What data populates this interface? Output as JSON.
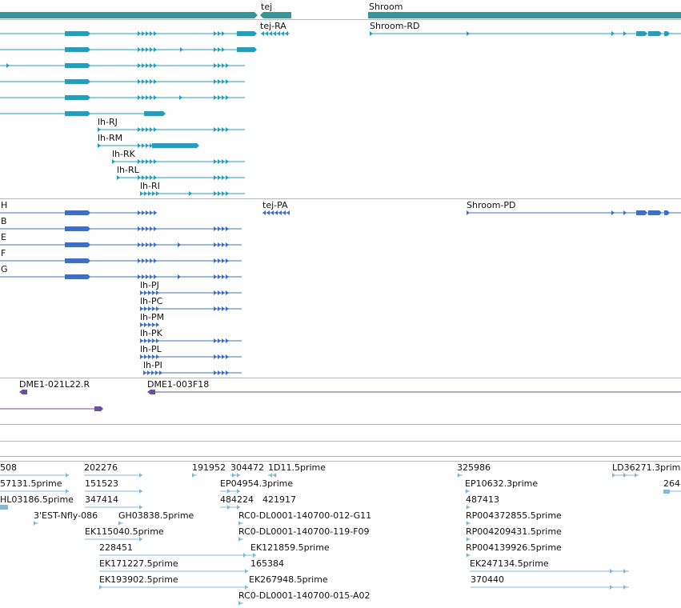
{
  "colors": {
    "gene": "#3a9597",
    "transcript": "#1fa0bf",
    "protein": "#3a6fcf",
    "clone": "#6e4e9e",
    "est": "#84b8db",
    "line": "#7a7a7a"
  },
  "genes": [
    {
      "label": "tej"
    },
    {
      "label": "Shroom"
    }
  ],
  "transcripts": [
    {
      "label": "tej-RA"
    },
    {
      "label": "Shroom-RD"
    },
    {
      "label": "lh-RJ"
    },
    {
      "label": "lh-RM"
    },
    {
      "label": "lh-RK"
    },
    {
      "label": "lh-RL"
    },
    {
      "label": "lh-RI"
    }
  ],
  "proteins": [
    {
      "label": "H"
    },
    {
      "label": "tej-PA"
    },
    {
      "label": "Shroom-PD"
    },
    {
      "label": "B"
    },
    {
      "label": "E"
    },
    {
      "label": "F"
    },
    {
      "label": "G"
    },
    {
      "label": "lh-PJ"
    },
    {
      "label": "lh-PC"
    },
    {
      "label": "lh-PM"
    },
    {
      "label": "lh-PK"
    },
    {
      "label": "lh-PL"
    },
    {
      "label": "lh-PI"
    }
  ],
  "clones": [
    {
      "label": "DME1-021L22.R"
    },
    {
      "label": "DME1-003F18"
    }
  ],
  "ests": [
    {
      "label": "508"
    },
    {
      "label": "202276"
    },
    {
      "label": "191952"
    },
    {
      "label": "304472"
    },
    {
      "label": "1D11.5prime"
    },
    {
      "label": "325986"
    },
    {
      "label": "LD36271.3prim"
    },
    {
      "label": "57131.5prime"
    },
    {
      "label": "151523"
    },
    {
      "label": "EP04954.3prime"
    },
    {
      "label": "EP10632.3prime"
    },
    {
      "label": "264"
    },
    {
      "label": "HL03186.5prime"
    },
    {
      "label": "347414"
    },
    {
      "label": "484224"
    },
    {
      "label": "421917"
    },
    {
      "label": "487413"
    },
    {
      "label": "3'EST-Nfly-086"
    },
    {
      "label": "GH03838.5prime"
    },
    {
      "label": "RC0-DL0001-140700-012-G11"
    },
    {
      "label": "RP004372855.5prime"
    },
    {
      "label": "EK115040.5prime"
    },
    {
      "label": "RC0-DL0001-140700-119-F09"
    },
    {
      "label": "RP004209431.5prime"
    },
    {
      "label": "228451"
    },
    {
      "label": "EK121859.5prime"
    },
    {
      "label": "RP004139926.5prime"
    },
    {
      "label": "EK171227.5prime"
    },
    {
      "label": "165384"
    },
    {
      "label": "EK247134.5prime"
    },
    {
      "label": "EK193902.5prime"
    },
    {
      "label": "EK267948.5prime"
    },
    {
      "label": "370440"
    },
    {
      "label": "RC0-DL0001-140700-015-A02"
    }
  ]
}
